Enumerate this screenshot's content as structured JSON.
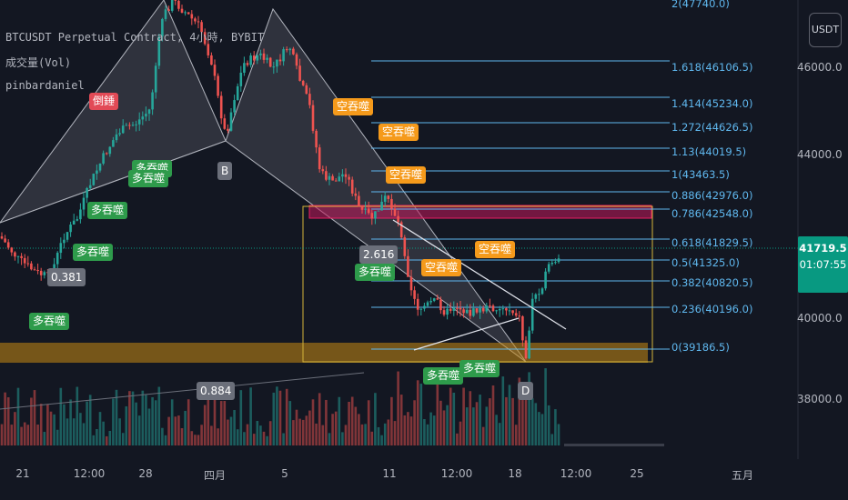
{
  "legend": {
    "symbol_line": "BTCUSDT Perpetual Contract, 4小時, BYBIT",
    "indicator_volume": "成交量(Vol)",
    "indicator_script": "pinbardaniel"
  },
  "price_scale": {
    "currency": "USDT",
    "labels": [
      "46000.0",
      "44000.0",
      "40000.0",
      "38000.0"
    ],
    "current_price": "41719.5",
    "countdown": "01:07:55"
  },
  "time_axis": {
    "labels": [
      "21",
      "12:00",
      "28",
      "四月",
      "5",
      "11",
      "12:00",
      "18",
      "12:00",
      "25",
      "五月"
    ]
  },
  "fib_levels": [
    {
      "label": "2(47740.0)",
      "price": 47740.0
    },
    {
      "label": "1.618(46106.5)",
      "price": 46106.5
    },
    {
      "label": "1.414(45234.0)",
      "price": 45234.0
    },
    {
      "label": "1.272(44626.5)",
      "price": 44626.5
    },
    {
      "label": "1.13(44019.5)",
      "price": 44019.5
    },
    {
      "label": "1(43463.5)",
      "price": 43463.5
    },
    {
      "label": "0.886(42976.0)",
      "price": 42976.0
    },
    {
      "label": "0.786(42548.0)",
      "price": 42548.0
    },
    {
      "label": "0.618(41829.5)",
      "price": 41829.5
    },
    {
      "label": "0.5(41325.0)",
      "price": 41325.0
    },
    {
      "label": "0.382(40820.5)",
      "price": 40820.5
    },
    {
      "label": "0.236(40196.0)",
      "price": 40196.0
    },
    {
      "label": "0(39186.5)",
      "price": 39186.5
    }
  ],
  "harmonic": {
    "point_b": "B",
    "point_d": "D",
    "ratio_1": "0.381",
    "ratio_2": "2.616",
    "ratio_3": "0.884"
  },
  "signals": {
    "bull_label": "多吞噬",
    "bear_label": "空吞噬",
    "reversal_label": "倒錘"
  },
  "colors": {
    "background": "#131722",
    "up": "#26a69a",
    "down": "#ef5350",
    "fib": "#5fb7ee",
    "current_price": "#089981"
  }
}
